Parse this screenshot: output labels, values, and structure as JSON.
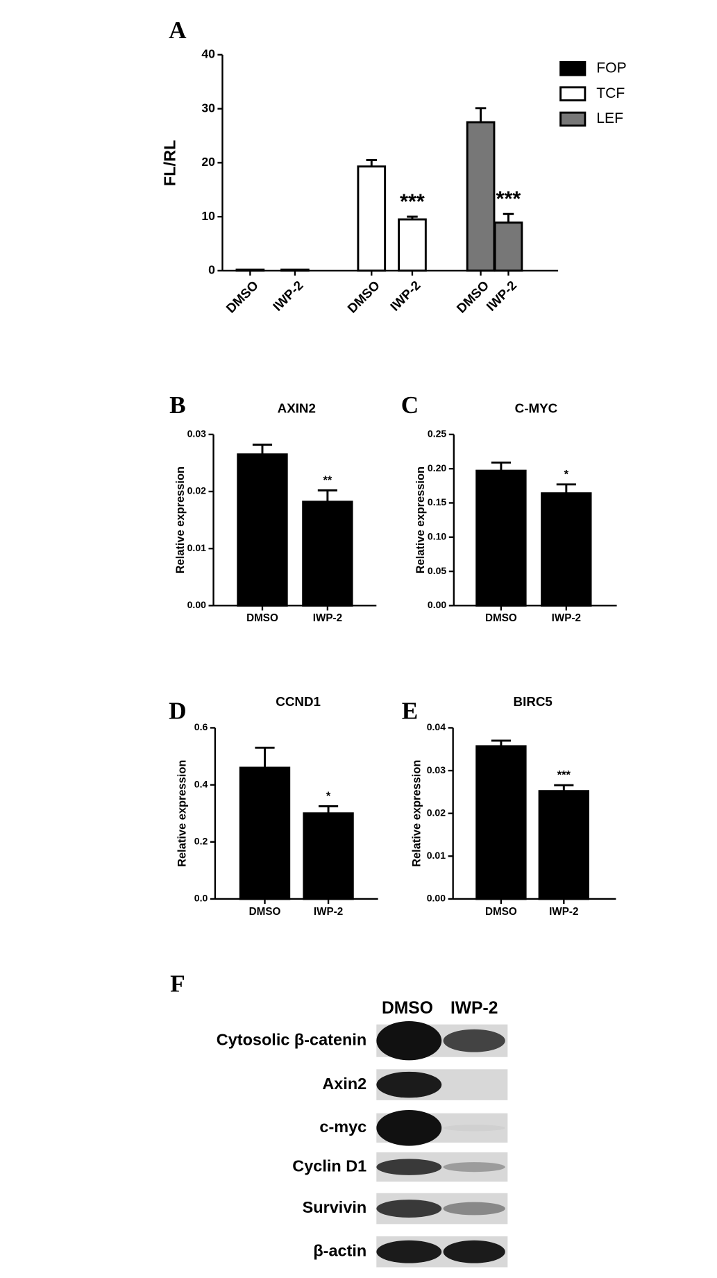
{
  "chart_data": [
    {
      "type": "bar",
      "label": "A",
      "ylabel": "FL/RL",
      "categories": [
        "DMSO",
        "IWP-2",
        "DMSO",
        "IWP-2",
        "DMSO",
        "IWP-2"
      ],
      "series": [
        {
          "name": "FOP",
          "color": "#000000",
          "values": [
            0.2,
            0.2,
            null,
            null,
            null,
            null
          ],
          "errors": [
            0,
            0,
            null,
            null,
            null,
            null
          ],
          "significance": [
            null,
            null,
            null,
            null,
            null,
            null
          ]
        },
        {
          "name": "TCF",
          "color": "#ffffff",
          "values": [
            null,
            null,
            19.3,
            9.5,
            null,
            null
          ],
          "errors": [
            null,
            null,
            1.2,
            0.5,
            null,
            null
          ],
          "significance": [
            null,
            null,
            null,
            "***",
            null,
            null
          ]
        },
        {
          "name": "LEF",
          "color": "#777777",
          "values": [
            null,
            null,
            null,
            null,
            27.5,
            8.9
          ],
          "errors": [
            null,
            null,
            null,
            null,
            2.6,
            1.6
          ],
          "significance": [
            null,
            null,
            null,
            null,
            null,
            "***"
          ]
        }
      ],
      "ylim": [
        0,
        40
      ],
      "yticks": [
        0,
        10,
        20,
        30,
        40
      ],
      "legend": "top-right"
    },
    {
      "type": "bar",
      "label": "B",
      "title": "AXIN2",
      "ylabel": "Relative expression",
      "categories": [
        "DMSO",
        "IWP-2"
      ],
      "series": [
        {
          "color": "#000000",
          "values": [
            0.0265,
            0.0182
          ],
          "errors": [
            0.0017,
            0.002
          ],
          "significance": [
            null,
            "**"
          ]
        }
      ],
      "ylim": [
        0,
        0.03
      ],
      "yticks": [
        {
          "value": 0,
          "label": "0.00"
        },
        {
          "value": 0.01,
          "label": "0.01"
        },
        {
          "value": 0.02,
          "label": "0.02"
        },
        {
          "value": 0.03,
          "label": "0.03"
        }
      ]
    },
    {
      "type": "bar",
      "label": "C",
      "title": "C-MYC",
      "ylabel": "Relative expression",
      "categories": [
        "DMSO",
        "IWP-2"
      ],
      "series": [
        {
          "color": "#000000",
          "values": [
            0.197,
            0.164
          ],
          "errors": [
            0.012,
            0.013
          ],
          "significance": [
            null,
            "*"
          ]
        }
      ],
      "ylim": [
        0,
        0.25
      ],
      "yticks": [
        {
          "value": 0,
          "label": "0.00"
        },
        {
          "value": 0.05,
          "label": "0.05"
        },
        {
          "value": 0.1,
          "label": "0.10"
        },
        {
          "value": 0.15,
          "label": "0.15"
        },
        {
          "value": 0.2,
          "label": "0.20"
        },
        {
          "value": 0.25,
          "label": "0.25"
        }
      ]
    },
    {
      "type": "bar",
      "label": "D",
      "title": "CCND1",
      "ylabel": "Relative expression",
      "categories": [
        "DMSO",
        "IWP-2"
      ],
      "series": [
        {
          "color": "#000000",
          "values": [
            0.46,
            0.3
          ],
          "errors": [
            0.07,
            0.025
          ],
          "significance": [
            null,
            "*"
          ]
        }
      ],
      "ylim": [
        0,
        0.6
      ],
      "yticks": [
        {
          "value": 0,
          "label": "0.0"
        },
        {
          "value": 0.2,
          "label": "0.2"
        },
        {
          "value": 0.4,
          "label": "0.4"
        },
        {
          "value": 0.6,
          "label": "0.6"
        }
      ]
    },
    {
      "type": "bar",
      "label": "E",
      "title": "BIRC5",
      "ylabel": "Relative expression",
      "categories": [
        "DMSO",
        "IWP-2"
      ],
      "series": [
        {
          "color": "#000000",
          "values": [
            0.0357,
            0.0252
          ],
          "errors": [
            0.0013,
            0.0014
          ],
          "significance": [
            null,
            "***"
          ]
        }
      ],
      "ylim": [
        0,
        0.04
      ],
      "yticks": [
        {
          "value": 0,
          "label": "0.00"
        },
        {
          "value": 0.01,
          "label": "0.01"
        },
        {
          "value": 0.02,
          "label": "0.02"
        },
        {
          "value": 0.03,
          "label": "0.03"
        },
        {
          "value": 0.04,
          "label": "0.04"
        }
      ]
    }
  ],
  "blot": {
    "label": "F",
    "columns": [
      "DMSO",
      "IWP-2"
    ],
    "rows": [
      "Cytosolic β-catenin",
      "Axin2",
      "c-myc",
      "Cyclin D1",
      "Survivin",
      "β-actin"
    ]
  }
}
